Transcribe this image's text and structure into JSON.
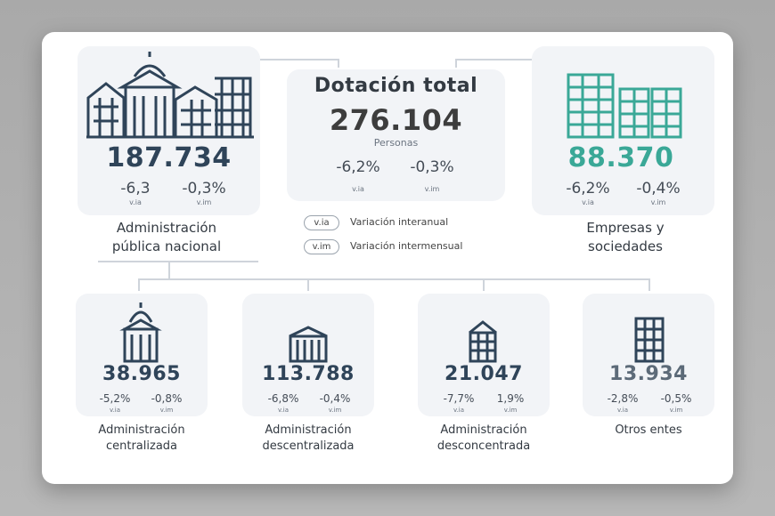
{
  "colors": {
    "navy": "#2f4459",
    "teal": "#3aa897",
    "gray_text": "#444c56"
  },
  "total": {
    "title": "Dotación total",
    "value": "276.104",
    "unit": "Personas",
    "via": "-6,2%",
    "vim": "-0,3%",
    "via_label": "v.ia",
    "vim_label": "v.im"
  },
  "apn": {
    "icon": "government-buildings-icon",
    "value": "187.734",
    "via": "-6,3",
    "vim": "-0,3%",
    "via_label": "v.ia",
    "vim_label": "v.im",
    "label_line1": "Administración",
    "label_line2": "pública nacional"
  },
  "empresas": {
    "icon": "office-buildings-icon",
    "value": "88.370",
    "via": "-6,2%",
    "vim": "-0,4%",
    "via_label": "v.ia",
    "vim_label": "v.im",
    "label_line1": "Empresas y",
    "label_line2": "sociedades"
  },
  "legend": [
    {
      "tag": "v.ia",
      "text": "Variación interanual"
    },
    {
      "tag": "v.im",
      "text": "Variación intermensual"
    }
  ],
  "subs": [
    {
      "icon": "domed-building-icon",
      "value": "38.965",
      "via": "-5,2%",
      "vim": "-0,8%",
      "via_label": "v.ia",
      "vim_label": "v.im",
      "label_line1": "Administración",
      "label_line2": "centralizada"
    },
    {
      "icon": "columned-building-icon",
      "value": "113.788",
      "via": "-6,8%",
      "vim": "-0,4%",
      "via_label": "v.ia",
      "vim_label": "v.im",
      "label_line1": "Administración",
      "label_line2": "descentralizada"
    },
    {
      "icon": "gabled-building-icon",
      "value": "21.047",
      "via": "-7,7%",
      "vim": "1,9%",
      "via_label": "v.ia",
      "vim_label": "v.im",
      "label_line1": "Administración",
      "label_line2": "desconcentrada"
    },
    {
      "icon": "tower-building-icon",
      "value": "13.934",
      "via": "-2,8%",
      "vim": "-0,5%",
      "via_label": "v.ia",
      "vim_label": "v.im",
      "label_line1": "Otros entes",
      "label_line2": ""
    }
  ]
}
